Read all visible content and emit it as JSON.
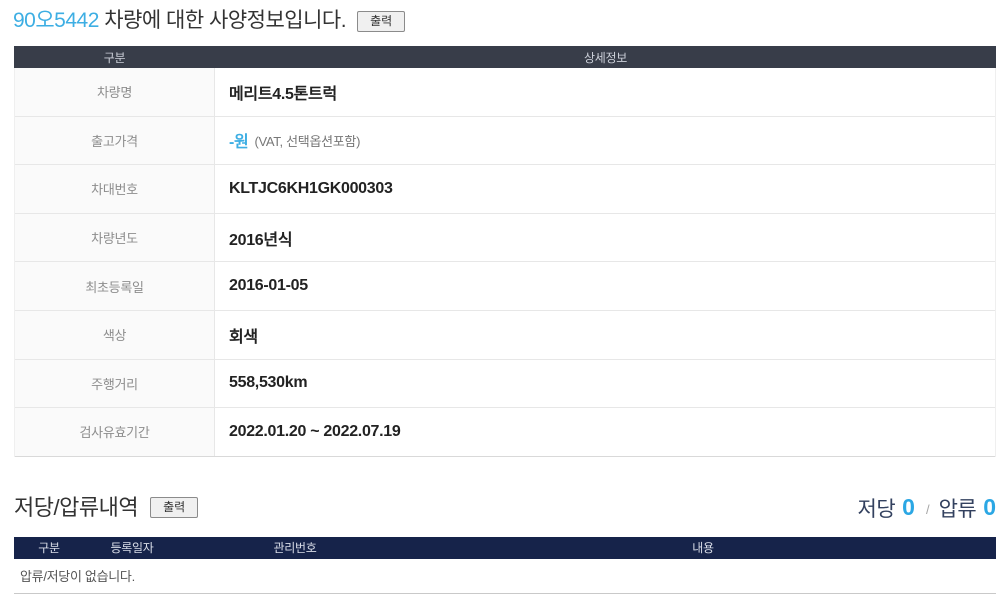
{
  "title": {
    "vehicle_no": "90오5442",
    "suffix": " 차량에 대한 사양정보입니다.",
    "print_label": "출력"
  },
  "spec_table": {
    "headers": [
      "구분",
      "상세정보"
    ],
    "rows": [
      {
        "label": "차량명",
        "value": "메리트4.5톤트럭"
      },
      {
        "label": "출고가격",
        "value_main": "-원",
        "value_sub": "(VAT, 선택옵션포함)"
      },
      {
        "label": "차대번호",
        "value": "KLTJC6KH1GK000303"
      },
      {
        "label": "차량년도",
        "value": "2016년식"
      },
      {
        "label": "최초등록일",
        "value": "2016-01-05"
      },
      {
        "label": "색상",
        "value": "회색"
      },
      {
        "label": "주행거리",
        "value": "558,530km"
      },
      {
        "label": "검사유효기간",
        "value": "2022.01.20 ~ 2022.07.19"
      }
    ]
  },
  "lien_section": {
    "title": "저당/압류내역",
    "print_label": "출력",
    "summary": {
      "mortgage_label": "저당",
      "mortgage_count": "0",
      "separator": "/",
      "seizure_label": "압류",
      "seizure_count": "0"
    },
    "table": {
      "headers": [
        "구분",
        "등록일자",
        "관리번호",
        "내용"
      ],
      "empty_message": "압류/저당이 없습니다."
    }
  },
  "colors": {
    "accent_blue": "#3daee3",
    "spec_header_bg": "#383d49",
    "lien_header_bg": "#16234a",
    "navy_text": "#33415f"
  }
}
